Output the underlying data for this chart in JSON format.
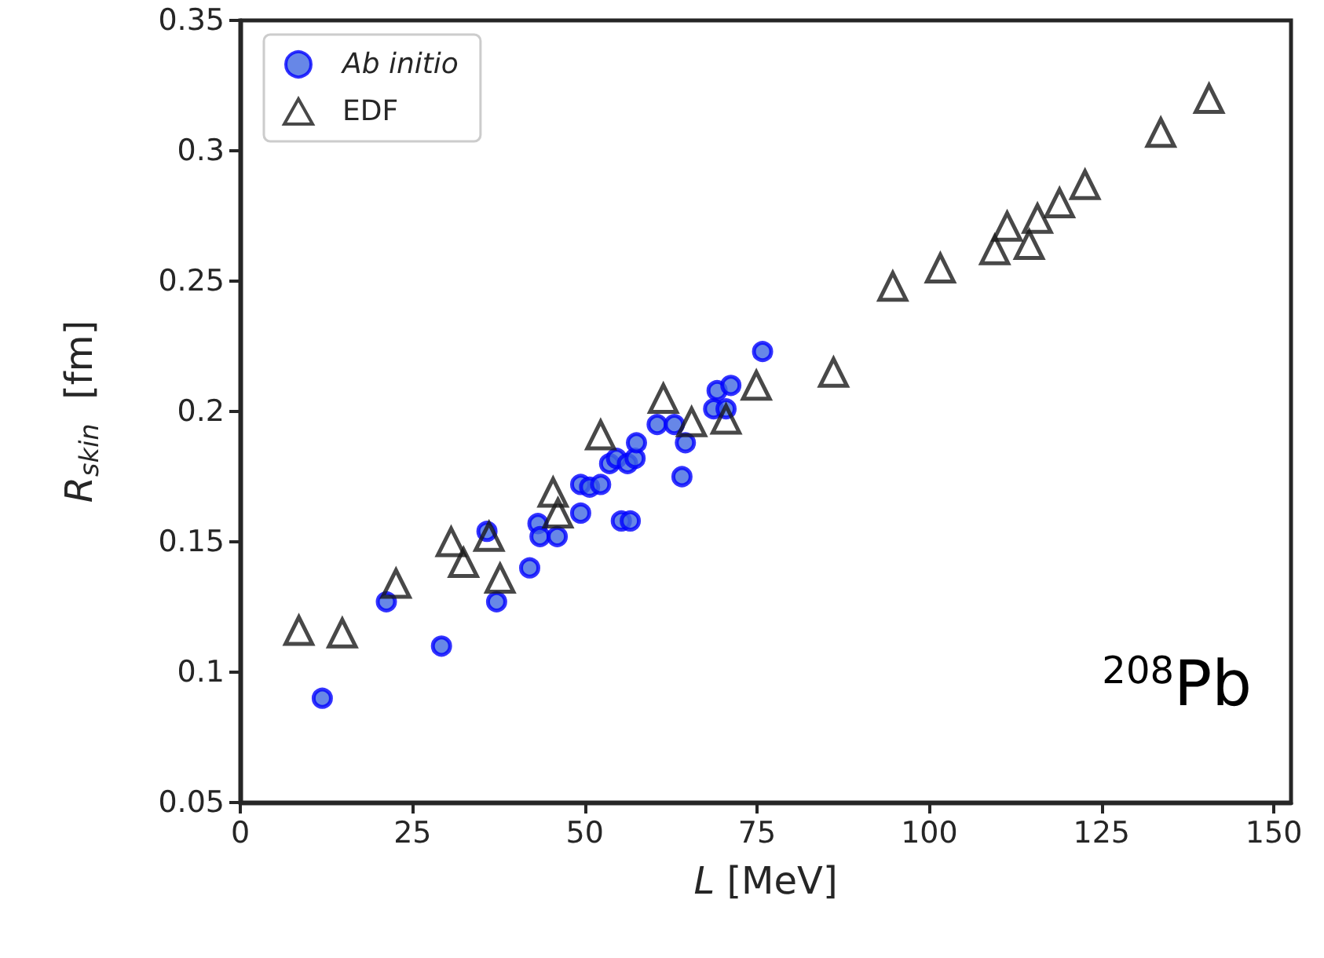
{
  "chart_data": {
    "type": "scatter",
    "xlabel": "L [MeV]",
    "ylabel": "R$_{skin}$  [fm]",
    "annotations": [
      "$^{208}$Pb"
    ],
    "xlim": [
      0,
      152.5
    ],
    "xticks": [
      0,
      25,
      50,
      75,
      100,
      125,
      150
    ],
    "ylim": [
      0.05,
      0.35
    ],
    "yticks": [
      0.05,
      0.1,
      0.15,
      0.2,
      0.25,
      0.3,
      0.35
    ],
    "grid": false,
    "legend": "top left",
    "series": [
      {
        "name": "Ab initio",
        "color": "#0000ff",
        "marker": "circle",
        "x": [
          11.9,
          21.2,
          29.2,
          35.8,
          37.2,
          42.0,
          43.2,
          43.5,
          46.0,
          49.4,
          49.4,
          50.7,
          52.3,
          53.6,
          54.6,
          55.3,
          56.6,
          56.2,
          57.3,
          57.5,
          60.5,
          63.0,
          64.1,
          64.6,
          69.2,
          68.7,
          70.5,
          71.2,
          75.8
        ],
        "values": [
          0.09,
          0.127,
          0.11,
          0.154,
          0.127,
          0.14,
          0.157,
          0.152,
          0.152,
          0.161,
          0.172,
          0.171,
          0.172,
          0.18,
          0.182,
          0.158,
          0.158,
          0.18,
          0.182,
          0.188,
          0.195,
          0.195,
          0.175,
          0.188,
          0.208,
          0.201,
          0.201,
          0.21,
          0.223
        ]
      },
      {
        "name": "EDF",
        "color": "#1a1a1a",
        "marker": "triangle",
        "x": [
          8.5,
          14.8,
          22.6,
          30.6,
          32.4,
          36.1,
          37.7,
          45.4,
          46.1,
          52.3,
          61.4,
          65.5,
          70.5,
          74.9,
          86.1,
          94.7,
          101.6,
          109.5,
          111.3,
          114.5,
          115.7,
          118.9,
          122.6,
          133.6,
          140.6
        ],
        "values": [
          0.116,
          0.115,
          0.134,
          0.15,
          0.142,
          0.152,
          0.136,
          0.169,
          0.161,
          0.191,
          0.205,
          0.196,
          0.197,
          0.21,
          0.215,
          0.248,
          0.255,
          0.262,
          0.271,
          0.264,
          0.274,
          0.28,
          0.287,
          0.307,
          0.32
        ]
      }
    ]
  }
}
